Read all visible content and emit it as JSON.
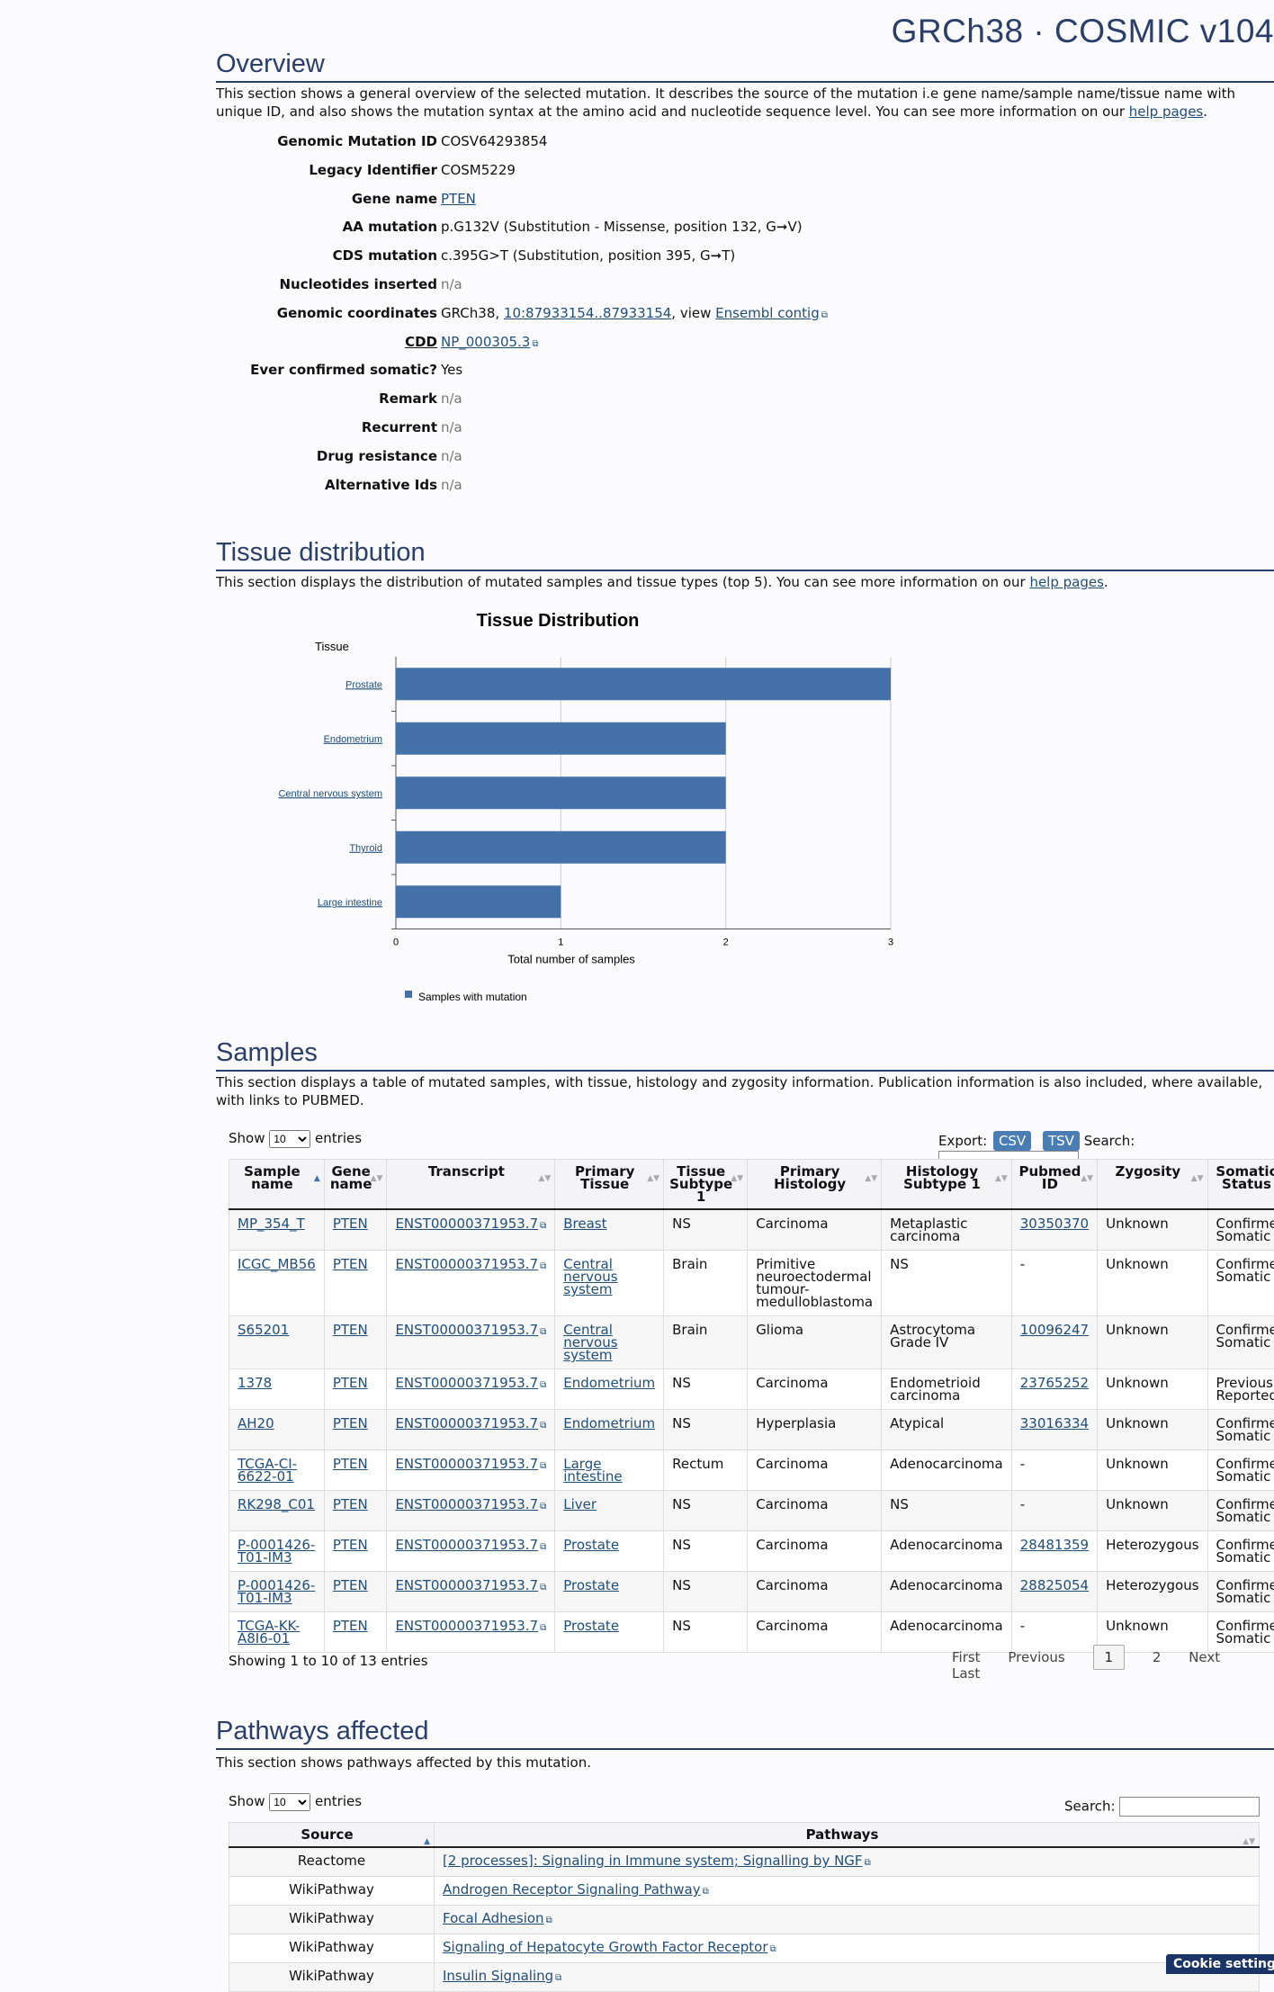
{
  "header": {
    "title": "GRCh38 · COSMIC v104"
  },
  "overview": {
    "title": "Overview",
    "desc_before": "This section shows a general overview of the selected mutation. It describes the source of the mutation i.e gene name/sample name/tissue name with unique ID, and also shows the mutation syntax at the amino acid and nucleotide sequence level. You can see more information on our ",
    "help_link": "help pages",
    "desc_after": ".",
    "rows": [
      {
        "label": "Genomic Mutation ID",
        "value": "COSV64293854"
      },
      {
        "label": "Legacy Identifier",
        "value": "COSM5229"
      },
      {
        "label": "Gene name",
        "value": "PTEN"
      },
      {
        "label": "AA mutation",
        "value": "p.G132V (Substitution - Missense, position 132, G➞V)"
      },
      {
        "label": "CDS mutation",
        "value": "c.395G>T (Substitution, position 395, G➞T)"
      },
      {
        "label": "Nucleotides inserted",
        "value": "n/a"
      },
      {
        "label": "Genomic coordinates",
        "value_prefix": "GRCh38, ",
        "coord_link": "10:87933154..87933154",
        "value_mid": ", view ",
        "ensembl_link": "Ensembl contig"
      },
      {
        "label": "CDD",
        "value": "NP_000305.3"
      },
      {
        "label": "Ever confirmed somatic?",
        "value": "Yes"
      },
      {
        "label": "Remark",
        "value": "n/a"
      },
      {
        "label": "Recurrent",
        "value": "n/a"
      },
      {
        "label": "Drug resistance",
        "value": "n/a"
      },
      {
        "label": "Alternative Ids",
        "value": "n/a"
      }
    ]
  },
  "tissue": {
    "title": "Tissue distribution",
    "desc_before": "This section displays the distribution of mutated samples and tissue types (top 5). You can see more information on our ",
    "help_link": "help pages",
    "desc_after": "."
  },
  "chart_data": {
    "type": "bar",
    "orientation": "horizontal",
    "title": "Tissue Distribution",
    "ylabel": "Tissue",
    "xlabel": "Total number of samples",
    "categories": [
      "Prostate",
      "Endometrium",
      "Central nervous system",
      "Thyroid",
      "Large intestine"
    ],
    "series": [
      {
        "name": "Samples with mutation",
        "values": [
          3,
          2,
          2,
          2,
          1
        ],
        "color": "#4472a8"
      }
    ],
    "xlim": [
      0,
      3
    ],
    "xticks": [
      0,
      1,
      2,
      3
    ],
    "grid": true,
    "legend": "bottom-left"
  },
  "samples": {
    "title": "Samples",
    "desc": "This section displays a table of mutated samples, with tissue, histology and zygosity information. Publication information is also included, where available, with links to PUBMED.",
    "show_label": "Show",
    "entries_label": "entries",
    "page_length": "10",
    "export_label": "Export:",
    "csv": "CSV",
    "tsv": "TSV",
    "search_label": "Search:",
    "columns": [
      "Sample name",
      "Gene name",
      "Transcript",
      "Primary Tissue",
      "Tissue Subtype 1",
      "Primary Histology",
      "Histology Subtype 1",
      "Pubmed ID",
      "Zygosity",
      "Somatic Status"
    ],
    "rows": [
      [
        "MP_354_T",
        "PTEN",
        "ENST00000371953.7",
        "Breast",
        "NS",
        "Carcinoma",
        "Metaplastic carcinoma",
        "30350370",
        "Unknown",
        "Confirmed Somatic"
      ],
      [
        "ICGC_MB56",
        "PTEN",
        "ENST00000371953.7",
        "Central nervous system",
        "Brain",
        "Primitive neuroectodermal tumour-medulloblastoma",
        "NS",
        "-",
        "Unknown",
        "Confirmed Somatic"
      ],
      [
        "S65201",
        "PTEN",
        "ENST00000371953.7",
        "Central nervous system",
        "Brain",
        "Glioma",
        "Astrocytoma Grade IV",
        "10096247",
        "Unknown",
        "Confirmed Somatic"
      ],
      [
        "1378",
        "PTEN",
        "ENST00000371953.7",
        "Endometrium",
        "NS",
        "Carcinoma",
        "Endometrioid carcinoma",
        "23765252",
        "Unknown",
        "Previously Reported"
      ],
      [
        "AH20",
        "PTEN",
        "ENST00000371953.7",
        "Endometrium",
        "NS",
        "Hyperplasia",
        "Atypical",
        "33016334",
        "Unknown",
        "Confirmed Somatic"
      ],
      [
        "TCGA-CI-6622-01",
        "PTEN",
        "ENST00000371953.7",
        "Large intestine",
        "Rectum",
        "Carcinoma",
        "Adenocarcinoma",
        "-",
        "Unknown",
        "Confirmed Somatic"
      ],
      [
        "RK298_C01",
        "PTEN",
        "ENST00000371953.7",
        "Liver",
        "NS",
        "Carcinoma",
        "NS",
        "-",
        "Unknown",
        "Confirmed Somatic"
      ],
      [
        "P-0001426-T01-IM3",
        "PTEN",
        "ENST00000371953.7",
        "Prostate",
        "NS",
        "Carcinoma",
        "Adenocarcinoma",
        "28481359",
        "Heterozygous",
        "Confirmed Somatic"
      ],
      [
        "P-0001426-T01-IM3",
        "PTEN",
        "ENST00000371953.7",
        "Prostate",
        "NS",
        "Carcinoma",
        "Adenocarcinoma",
        "28825054",
        "Heterozygous",
        "Confirmed Somatic"
      ],
      [
        "TCGA-KK-A8I6-01",
        "PTEN",
        "ENST00000371953.7",
        "Prostate",
        "NS",
        "Carcinoma",
        "Adenocarcinoma",
        "-",
        "Unknown",
        "Confirmed Somatic"
      ]
    ],
    "info": "Showing 1 to 10 of 13 entries",
    "pager": {
      "first": "First",
      "previous": "Previous",
      "page1": "1",
      "page2": "2",
      "next": "Next",
      "last": "Last"
    }
  },
  "pathways": {
    "title": "Pathways affected",
    "desc": "This section shows pathways affected by this mutation.",
    "show_label": "Show",
    "entries_label": "entries",
    "page_length": "10",
    "search_label": "Search:",
    "columns": [
      "Source",
      "Pathways"
    ],
    "rows": [
      [
        "Reactome",
        "[2 processes]: Signaling in Immune system; Signalling by NGF"
      ],
      [
        "WikiPathway",
        "Androgen Receptor Signaling Pathway"
      ],
      [
        "WikiPathway",
        "Focal Adhesion"
      ],
      [
        "WikiPathway",
        "Signaling of Hepatocyte Growth Factor Receptor"
      ],
      [
        "WikiPathway",
        "Insulin Signaling"
      ]
    ]
  },
  "cookie": {
    "label": "Cookie settings"
  }
}
